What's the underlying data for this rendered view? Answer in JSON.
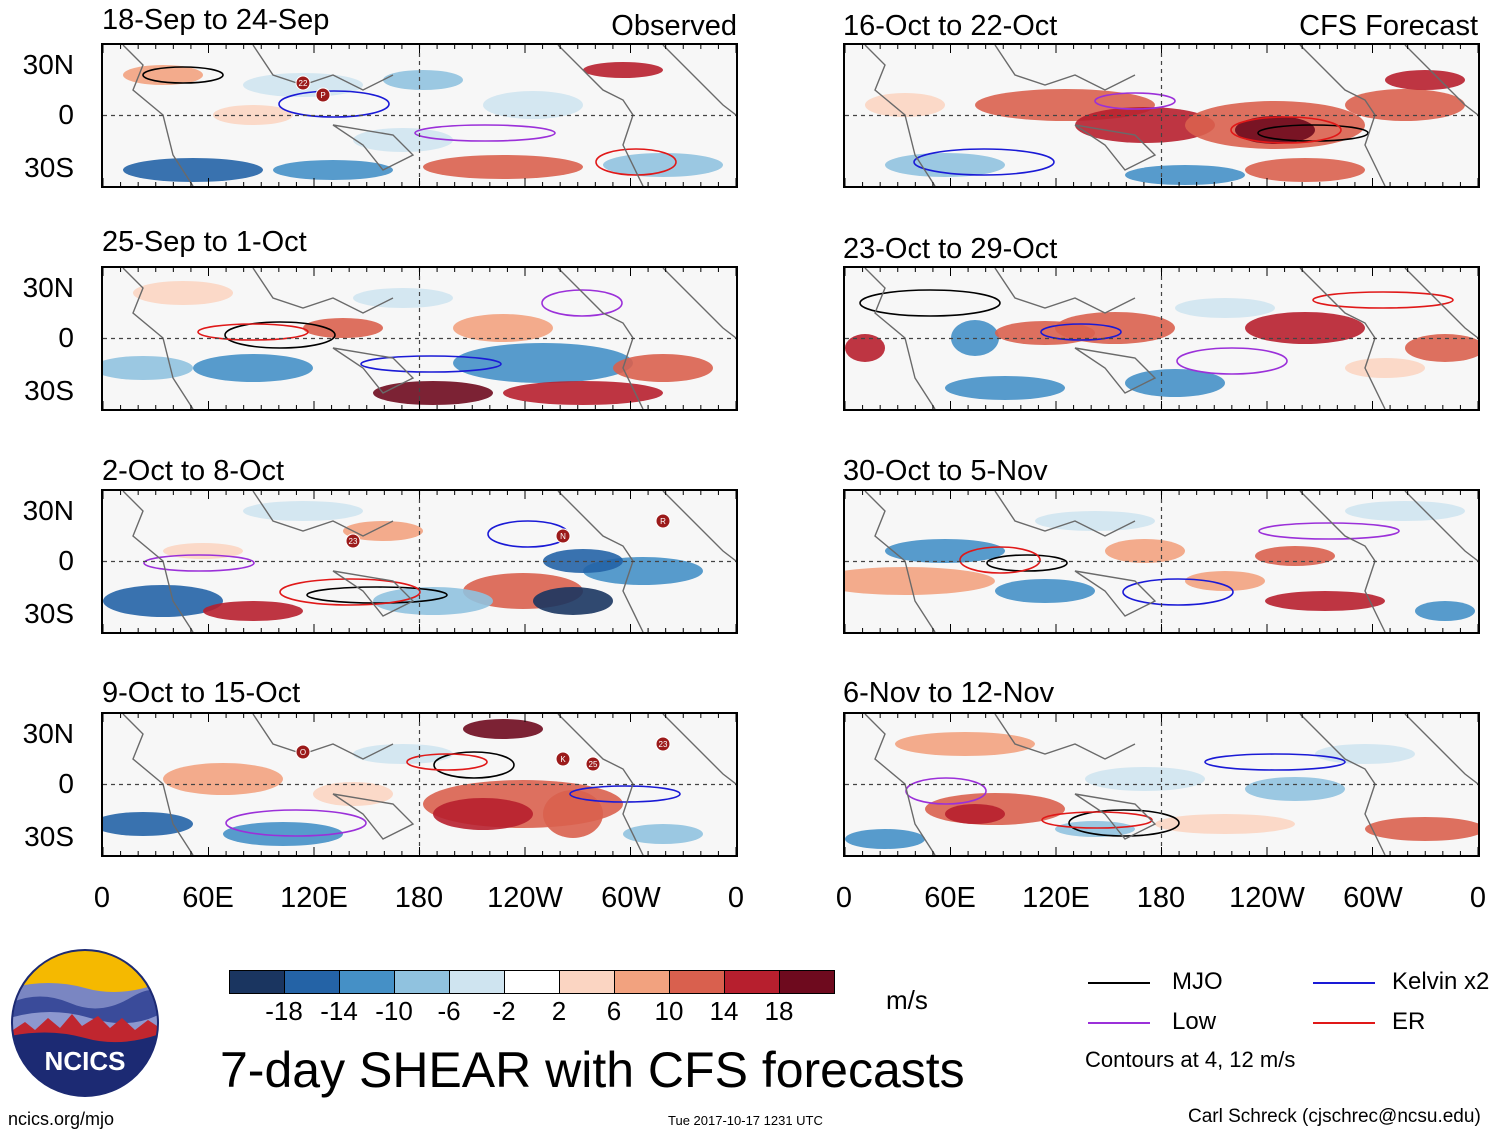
{
  "observed_label": "Observed",
  "forecast_label": "CFS Forecast",
  "lat_labels": [
    "30N",
    "0",
    "30S"
  ],
  "lon_labels": [
    "0",
    "60E",
    "120E",
    "180",
    "120W",
    "60W",
    "0"
  ],
  "panels": [
    {
      "title": "18-Sep to 24-Sep",
      "kind": "observed",
      "storms": [
        "22",
        "P"
      ]
    },
    {
      "title": "25-Sep to 1-Oct",
      "kind": "observed",
      "storms": []
    },
    {
      "title": "2-Oct to 8-Oct",
      "kind": "observed",
      "storms": [
        "23",
        "R",
        "N"
      ]
    },
    {
      "title": "9-Oct to 15-Oct",
      "kind": "observed",
      "storms": [
        "23",
        "K",
        "25",
        "O"
      ]
    },
    {
      "title": "16-Oct to 22-Oct",
      "kind": "forecast",
      "storms": []
    },
    {
      "title": "23-Oct to 29-Oct",
      "kind": "forecast",
      "storms": []
    },
    {
      "title": "30-Oct to 5-Nov",
      "kind": "forecast",
      "storms": []
    },
    {
      "title": "6-Nov to 12-Nov",
      "kind": "forecast",
      "storms": []
    }
  ],
  "colorbar": {
    "colors": [
      "#1a3560",
      "#2463a6",
      "#4590c6",
      "#90c2df",
      "#cfe4f0",
      "#ffffff",
      "#fbd5c2",
      "#f2a27f",
      "#d9604e",
      "#b71f2e",
      "#6e0a1e"
    ],
    "labels": [
      "-18",
      "-14",
      "-10",
      "-6",
      "-2",
      "2",
      "6",
      "10",
      "14",
      "18"
    ],
    "unit": "m/s"
  },
  "legend": {
    "items": [
      {
        "label": "MJO",
        "color": "#000000"
      },
      {
        "label": "Kelvin x2",
        "color": "#1a1ad6"
      },
      {
        "label": "Low",
        "color": "#9b30d9"
      },
      {
        "label": "ER",
        "color": "#e01818"
      }
    ],
    "note": "Contours at 4, 12 m/s"
  },
  "main_title": "7-day SHEAR with CFS forecasts",
  "logo_text": "NCICS",
  "footer": {
    "url": "ncics.org/mjo",
    "timestamp": "Tue 2017-10-17 1231 UTC",
    "author": "Carl Schreck (cjschrec@ncsu.edu)"
  }
}
